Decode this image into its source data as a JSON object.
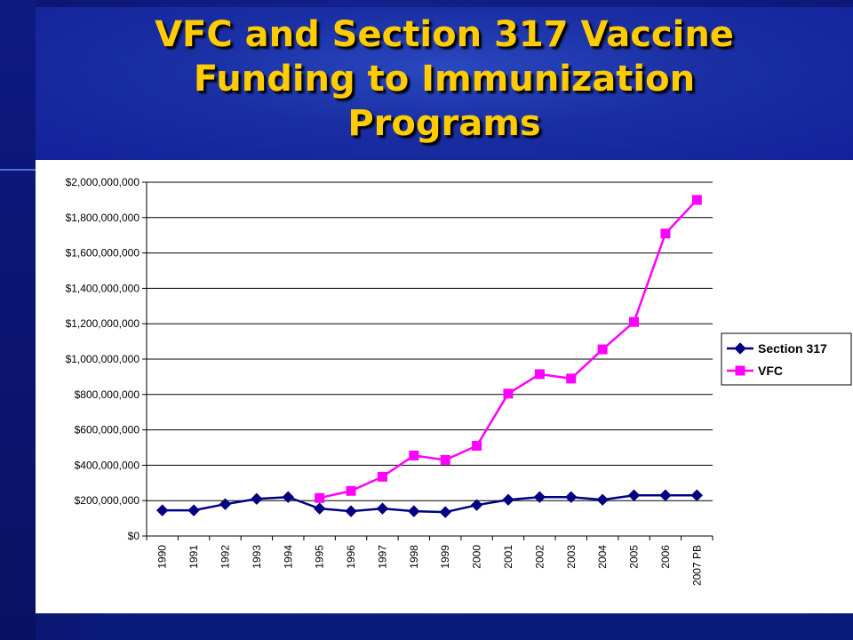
{
  "slide": {
    "title_lines": [
      "VFC and Section 317 Vaccine",
      "Funding to Immunization",
      "Programs"
    ]
  },
  "colors": {
    "title": "#ffcc00",
    "section317": "#000080",
    "vfc": "#ff00ff",
    "background": "#0a1266"
  },
  "chart_data": {
    "type": "line",
    "categories": [
      "1990",
      "1991",
      "1992",
      "1993",
      "1994",
      "1995",
      "1996",
      "1997",
      "1998",
      "1999",
      "2000",
      "2001",
      "2002",
      "2003",
      "2004",
      "2005",
      "2006",
      "2007 PB"
    ],
    "ylim": [
      0,
      2000000000
    ],
    "yticks": [
      0,
      200000000,
      400000000,
      600000000,
      800000000,
      1000000000,
      1200000000,
      1400000000,
      1600000000,
      1800000000,
      2000000000
    ],
    "ytick_labels": [
      "$0",
      "$200,000,000",
      "$400,000,000",
      "$600,000,000",
      "$800,000,000",
      "$1,000,000,000",
      "$1,200,000,000",
      "$1,400,000,000",
      "$1,600,000,000",
      "$1,800,000,000",
      "$2,000,000,000"
    ],
    "grid": true,
    "legend_position": "right",
    "series": [
      {
        "name": "Section 317",
        "marker": "diamond",
        "values": [
          145000000,
          145000000,
          180000000,
          210000000,
          220000000,
          155000000,
          140000000,
          155000000,
          140000000,
          135000000,
          175000000,
          205000000,
          220000000,
          220000000,
          205000000,
          230000000,
          230000000,
          230000000
        ]
      },
      {
        "name": "VFC",
        "marker": "square",
        "values": [
          null,
          null,
          null,
          null,
          null,
          215000000,
          255000000,
          335000000,
          455000000,
          430000000,
          510000000,
          805000000,
          915000000,
          890000000,
          1055000000,
          1210000000,
          1710000000,
          1900000000
        ]
      }
    ]
  }
}
